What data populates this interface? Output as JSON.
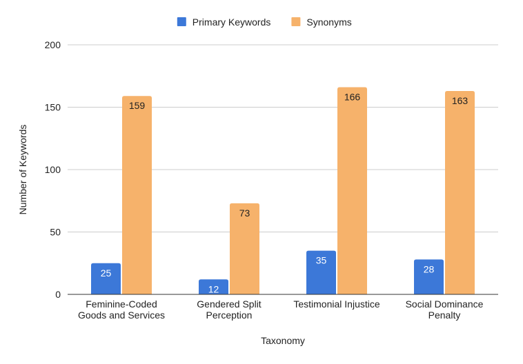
{
  "chart_data": {
    "type": "bar",
    "categories": [
      [
        "Feminine-Coded",
        "Goods and Services"
      ],
      [
        "Gendered Split",
        "Perception"
      ],
      [
        "Testimonial Injustice"
      ],
      [
        "Social Dominance",
        "Penalty"
      ]
    ],
    "series": [
      {
        "name": "Primary Keywords",
        "values": [
          25,
          12,
          35,
          28
        ],
        "color": "#3c78d8",
        "label_color": "#ffffff"
      },
      {
        "name": "Synonyms",
        "values": [
          159,
          73,
          166,
          163
        ],
        "color": "#f6b26b",
        "label_color": "#222222"
      }
    ],
    "xlabel": "Taxonomy",
    "ylabel": "Number of Keywords",
    "ylim": [
      0,
      200
    ],
    "yticks": [
      0,
      50,
      100,
      150,
      200
    ],
    "grid": true,
    "legend_position": "top-center"
  }
}
